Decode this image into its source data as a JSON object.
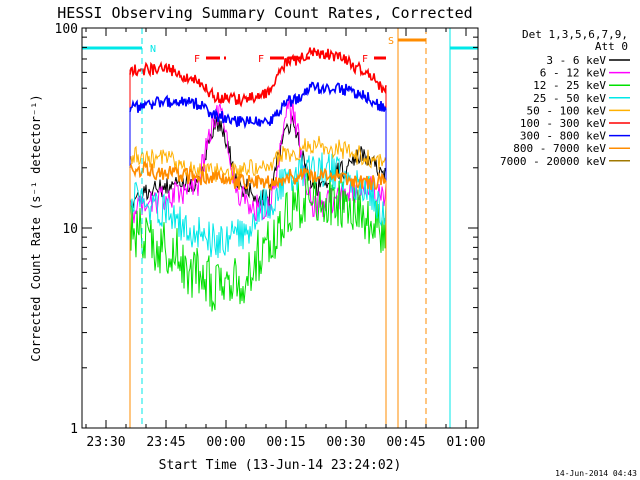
{
  "chart_data": {
    "type": "line",
    "title": "HESSI Observing Summary Count Rates, Corrected",
    "xlabel": "Start Time (13-Jun-14 23:24:02)",
    "ylabel": "Corrected Count Rate (s⁻¹ detector⁻¹)",
    "y_scale": "log",
    "ylim": [
      1,
      100
    ],
    "xlim": [
      "23:24",
      "01:03"
    ],
    "x_tick_labels": [
      "23:30",
      "23:45",
      "00:00",
      "00:15",
      "00:30",
      "00:45",
      "01:00"
    ],
    "y_tick_labels": [
      "1",
      "10",
      "100"
    ],
    "timestamp": "14-Jun-2014 04:43",
    "legend": {
      "placement": "right",
      "header": [
        "Det 1,3,5,6,7,9,",
        "Att 0"
      ],
      "entries": [
        {
          "label": "3 - 6 keV",
          "color": "#000000"
        },
        {
          "label": "6 - 12 keV",
          "color": "#ff00ff"
        },
        {
          "label": "12 - 25 keV",
          "color": "#00e000"
        },
        {
          "label": "25 - 50 keV",
          "color": "#00e8e8"
        },
        {
          "label": "50 - 100 keV",
          "color": "#ffb000"
        },
        {
          "label": "100 - 300 keV",
          "color": "#ff0000"
        },
        {
          "label": "300 - 800 keV",
          "color": "#0000ff"
        },
        {
          "label": "800 - 7000 keV",
          "color": "#ff8c00"
        },
        {
          "label": "7000 - 20000 keV",
          "color": "#a07800"
        }
      ]
    },
    "x": [
      "23:36",
      "23:45",
      "23:52",
      "23:58",
      "00:04",
      "00:10",
      "00:16",
      "00:22",
      "00:28",
      "00:34",
      "00:40"
    ],
    "series": [
      {
        "name": "3 - 6 keV",
        "color": "#000000",
        "values": [
          14,
          16,
          17,
          33,
          16,
          14,
          33,
          16,
          19,
          23,
          18
        ]
      },
      {
        "name": "6 - 12 keV",
        "color": "#ff00ff",
        "values": [
          12,
          14,
          16,
          38,
          14,
          12,
          38,
          13,
          14,
          16,
          15
        ]
      },
      {
        "name": "12 - 25 keV",
        "color": "#00e000",
        "values": [
          9.5,
          8,
          6,
          5,
          5.5,
          8,
          12,
          15,
          14,
          12,
          9
        ]
      },
      {
        "name": "25 - 50 keV",
        "color": "#00e8e8",
        "values": [
          14,
          12,
          9.5,
          8.5,
          9.5,
          13,
          18,
          20,
          19,
          16,
          12
        ]
      },
      {
        "name": "50 - 100 keV",
        "color": "#ffb000",
        "values": [
          23,
          22,
          20,
          19,
          19,
          21,
          24,
          26,
          25,
          23,
          21
        ]
      },
      {
        "name": "100 - 300 keV",
        "color": "#ff0000",
        "values": [
          62,
          62,
          55,
          45,
          44,
          47,
          68,
          76,
          72,
          62,
          50
        ]
      },
      {
        "name": "300 - 800 keV",
        "color": "#0000ff",
        "values": [
          40,
          43,
          42,
          36,
          34,
          34,
          43,
          50,
          50,
          46,
          40
        ]
      },
      {
        "name": "800 - 7000 keV",
        "color": "#ff8c00",
        "values": [
          20,
          19,
          18,
          17.5,
          17,
          17,
          18,
          18.5,
          18,
          17,
          17
        ]
      }
    ],
    "annotations": [
      {
        "label": "N",
        "color": "#00e8e8",
        "type": "night",
        "start": "23:24",
        "end": "23:39"
      },
      {
        "label": "N",
        "color": "#00e8e8",
        "type": "night",
        "start": "00:56",
        "end": "01:03"
      },
      {
        "label": "F",
        "color": "#ff0000",
        "type": "flare",
        "start": "23:55",
        "end": "00:00"
      },
      {
        "label": "F",
        "color": "#ff0000",
        "type": "flare",
        "start": "00:11",
        "end": "00:21"
      },
      {
        "label": "F",
        "color": "#ff0000",
        "type": "flare",
        "start": "00:37",
        "end": "00:40"
      },
      {
        "label": "S",
        "color": "#ff8c00",
        "type": "saa",
        "start": "00:43",
        "end": "00:50"
      }
    ],
    "grid": false
  }
}
